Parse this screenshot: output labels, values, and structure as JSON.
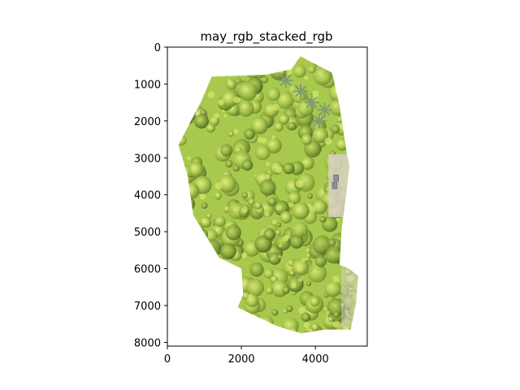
{
  "figure": {
    "title": "may_rgb_stacked_rgb"
  },
  "image_extent": {
    "x": [
      0,
      5400
    ],
    "y": [
      0,
      8100
    ],
    "y_inverted": true
  },
  "x_ticks": [
    0,
    2000,
    4000
  ],
  "y_ticks": [
    0,
    1000,
    2000,
    3000,
    4000,
    5000,
    6000,
    7000,
    8000
  ],
  "orthomosaic": {
    "boundary_polygon_data_units": [
      [
        3600,
        250
      ],
      [
        4450,
        700
      ],
      [
        4650,
        1600
      ],
      [
        4850,
        2900
      ],
      [
        4920,
        3200
      ],
      [
        4800,
        4200
      ],
      [
        4700,
        5000
      ],
      [
        4650,
        5900
      ],
      [
        4900,
        6000
      ],
      [
        5150,
        6200
      ],
      [
        5100,
        6900
      ],
      [
        4950,
        7650
      ],
      [
        4250,
        7650
      ],
      [
        3600,
        7750
      ],
      [
        2950,
        7550
      ],
      [
        1900,
        7050
      ],
      [
        2050,
        6700
      ],
      [
        2000,
        6000
      ],
      [
        1400,
        5700
      ],
      [
        700,
        4550
      ],
      [
        550,
        3500
      ],
      [
        300,
        2650
      ],
      [
        900,
        1500
      ],
      [
        1200,
        800
      ],
      [
        2650,
        750
      ],
      [
        3350,
        600
      ]
    ],
    "canopy_color": "#a9c94e",
    "highlight_color": "#d6e86a",
    "shadow_color": "#5e7d2c",
    "palm_color": "#7f9c70",
    "ground_color": "#d9d1c4",
    "vehicles": [
      [
        4560,
        3550
      ],
      [
        4520,
        3750
      ]
    ]
  }
}
